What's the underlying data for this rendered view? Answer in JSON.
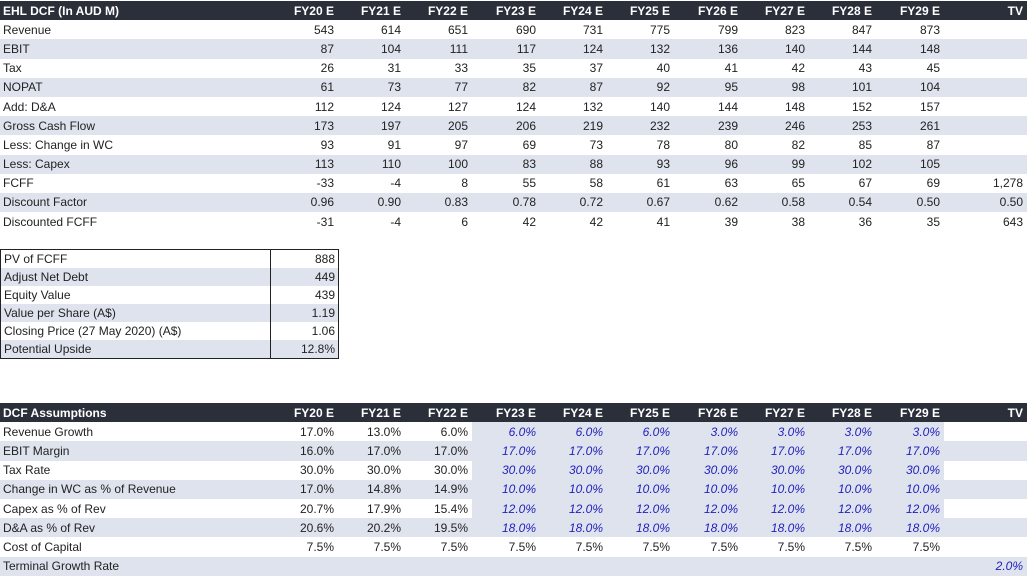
{
  "dcf": {
    "title": "EHL DCF (In AUD M)",
    "columns": [
      "FY20 E",
      "FY21 E",
      "FY22 E",
      "FY23 E",
      "FY24 E",
      "FY25 E",
      "FY26 E",
      "FY27 E",
      "FY28 E",
      "FY29 E",
      "TV"
    ],
    "rows": [
      {
        "label": "Revenue",
        "values": [
          "543",
          "614",
          "651",
          "690",
          "731",
          "775",
          "799",
          "823",
          "847",
          "873",
          ""
        ]
      },
      {
        "label": "EBIT",
        "values": [
          "87",
          "104",
          "111",
          "117",
          "124",
          "132",
          "136",
          "140",
          "144",
          "148",
          ""
        ]
      },
      {
        "label": "Tax",
        "values": [
          "26",
          "31",
          "33",
          "35",
          "37",
          "40",
          "41",
          "42",
          "43",
          "45",
          ""
        ]
      },
      {
        "label": "NOPAT",
        "values": [
          "61",
          "73",
          "77",
          "82",
          "87",
          "92",
          "95",
          "98",
          "101",
          "104",
          ""
        ]
      },
      {
        "label": "Add: D&A",
        "values": [
          "112",
          "124",
          "127",
          "124",
          "132",
          "140",
          "144",
          "148",
          "152",
          "157",
          ""
        ]
      },
      {
        "label": "Gross Cash Flow",
        "values": [
          "173",
          "197",
          "205",
          "206",
          "219",
          "232",
          "239",
          "246",
          "253",
          "261",
          ""
        ]
      },
      {
        "label": "Less: Change in WC",
        "values": [
          "93",
          "91",
          "97",
          "69",
          "73",
          "78",
          "80",
          "82",
          "85",
          "87",
          ""
        ]
      },
      {
        "label": "Less: Capex",
        "values": [
          "113",
          "110",
          "100",
          "83",
          "88",
          "93",
          "96",
          "99",
          "102",
          "105",
          ""
        ]
      },
      {
        "label": "FCFF",
        "values": [
          "-33",
          "-4",
          "8",
          "55",
          "58",
          "61",
          "63",
          "65",
          "67",
          "69",
          "1,278"
        ]
      },
      {
        "label": "Discount Factor",
        "values": [
          "0.96",
          "0.90",
          "0.83",
          "0.78",
          "0.72",
          "0.67",
          "0.62",
          "0.58",
          "0.54",
          "0.50",
          "0.50"
        ]
      },
      {
        "label": "Discounted FCFF",
        "values": [
          "-31",
          "-4",
          "6",
          "42",
          "42",
          "41",
          "39",
          "38",
          "36",
          "35",
          "643"
        ]
      }
    ]
  },
  "summary": {
    "rows": [
      {
        "label": "PV of FCFF",
        "value": "888"
      },
      {
        "label": "Adjust Net Debt",
        "value": "449"
      },
      {
        "label": "Equity Value",
        "value": "439"
      },
      {
        "label": "Value per Share (A$)",
        "value": "1.19"
      },
      {
        "label": "Closing Price (27 May 2020) (A$)",
        "value": "1.06"
      },
      {
        "label": "Potential Upside",
        "value": "12.8%"
      }
    ]
  },
  "assumptions": {
    "title": "DCF Assumptions",
    "columns": [
      "FY20 E",
      "FY21 E",
      "FY22 E",
      "FY23 E",
      "FY24 E",
      "FY25 E",
      "FY26 E",
      "FY27 E",
      "FY28 E",
      "FY29 E",
      "TV"
    ],
    "rows": [
      {
        "label": "Revenue Growth",
        "values": [
          "17.0%",
          "13.0%",
          "6.0%",
          "6.0%",
          "6.0%",
          "6.0%",
          "3.0%",
          "3.0%",
          "3.0%",
          "3.0%",
          ""
        ]
      },
      {
        "label": "EBIT Margin",
        "values": [
          "16.0%",
          "17.0%",
          "17.0%",
          "17.0%",
          "17.0%",
          "17.0%",
          "17.0%",
          "17.0%",
          "17.0%",
          "17.0%",
          ""
        ]
      },
      {
        "label": "Tax Rate",
        "values": [
          "30.0%",
          "30.0%",
          "30.0%",
          "30.0%",
          "30.0%",
          "30.0%",
          "30.0%",
          "30.0%",
          "30.0%",
          "30.0%",
          ""
        ]
      },
      {
        "label": "Change in WC as % of Revenue",
        "values": [
          "17.0%",
          "14.8%",
          "14.9%",
          "10.0%",
          "10.0%",
          "10.0%",
          "10.0%",
          "10.0%",
          "10.0%",
          "10.0%",
          ""
        ]
      },
      {
        "label": "Capex as % of Rev",
        "values": [
          "20.7%",
          "17.9%",
          "15.4%",
          "12.0%",
          "12.0%",
          "12.0%",
          "12.0%",
          "12.0%",
          "12.0%",
          "12.0%",
          ""
        ]
      },
      {
        "label": "D&A as % of Rev",
        "values": [
          "20.6%",
          "20.2%",
          "19.5%",
          "18.0%",
          "18.0%",
          "18.0%",
          "18.0%",
          "18.0%",
          "18.0%",
          "18.0%",
          ""
        ]
      },
      {
        "label": "Cost of Capital",
        "values": [
          "7.5%",
          "7.5%",
          "7.5%",
          "7.5%",
          "7.5%",
          "7.5%",
          "7.5%",
          "7.5%",
          "7.5%",
          "7.5%",
          ""
        ]
      },
      {
        "label": "Terminal Growth Rate",
        "values": [
          "",
          "",
          "",
          "",
          "",
          "",
          "",
          "",
          "",
          "",
          "2.0%"
        ]
      }
    ]
  },
  "colors": {
    "header_bg": "#2b2f3a",
    "shade": "#dfe3ee",
    "input_text": "#2222bb"
  }
}
